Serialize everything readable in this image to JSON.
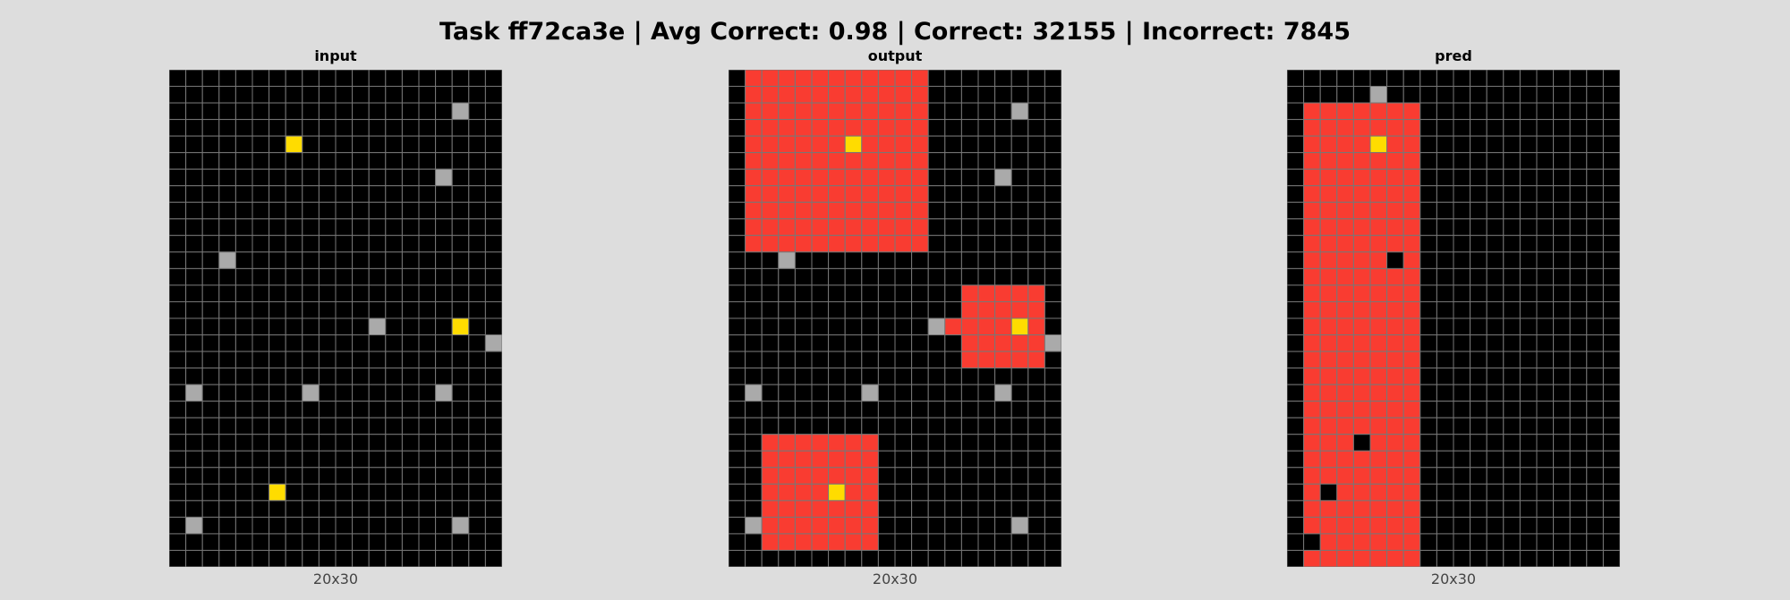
{
  "title": "Task ff72ca3e | Avg Correct: 0.98 | Correct: 32155 | Incorrect: 7845",
  "colors": {
    "0": "#000000",
    "2": "#f93c31",
    "4": "#ffdc00",
    "5": "#aaaaaa",
    "gridline": "#777777",
    "background": "#dddddd"
  },
  "panels": [
    {
      "label": "input",
      "size_label": "20x30",
      "rows": [
        "00000000000000000000",
        "00000000000000000000",
        "00000000000000000500",
        "00000000000000000000",
        "00000004000000000000",
        "00000000000000000000",
        "00000000000000005000",
        "00000000000000000000",
        "00000000000000000000",
        "00000000000000000000",
        "00000000000000000000",
        "00050000000000000000",
        "00000000000000000000",
        "00000000000000000000",
        "00000000000000000000",
        "00000000000050000400",
        "00000000000000000005",
        "00000000000000000000",
        "00000000000000000000",
        "05000000500000005000",
        "00000000000000000000",
        "00000000000000000000",
        "00000000000000000000",
        "00000000000000000000",
        "00000000000000000000",
        "00000040000000000000",
        "00000000000000000000",
        "05000000000000000500",
        "00000000000000000000",
        "00000000000000000000"
      ]
    },
    {
      "label": "output",
      "size_label": "20x30",
      "rows": [
        "02222222222200000000",
        "02222222222200000000",
        "02222222222200000500",
        "02222222222200000000",
        "02222224222200000000",
        "02222222222200000000",
        "02222222222200005000",
        "02222222222200000000",
        "02222222222200000000",
        "02222222222200000000",
        "02222222222200000000",
        "00050000000000000000",
        "00000000000000000000",
        "00000000000001222220",
        "00000000000001222220",
        "00000000000052222420",
        "00000000000001222225",
        "00000000000001222220",
        "00000000000000000000",
        "05000000500000005000",
        "00000000000000000000",
        "00000000000000000000",
        "00222222200000000000",
        "00222222200000000000",
        "00222222200000000000",
        "00222242200000000000",
        "00222222200000000000",
        "05222222200000000500",
        "00222222200000000000",
        "00000000000000000000"
      ]
    },
    {
      "label": "pred",
      "size_label": "20x30",
      "rows": [
        "00000000000000000000",
        "00000500000000000000",
        "02222222000000000000",
        "02222222000000000000",
        "02222422000000000000",
        "02222222000000000000",
        "02222222000000000000",
        "02222222000000000000",
        "02222222000000000000",
        "02222222000000000000",
        "02222222000000000000",
        "02222202000000000000",
        "02222222000000000000",
        "02222222000000000000",
        "02222222000000000000",
        "02222222000000000000",
        "02222222000000000000",
        "02222222000000000000",
        "02222222000000000000",
        "02222222000000000000",
        "02222222000000000000",
        "02222222000000000000",
        "02220222000000000000",
        "02222222000000000000",
        "02222222000000000000",
        "02022222000000000000",
        "02222222000000000000",
        "02222222000000000000",
        "00222222000000000000",
        "02222222000000000000"
      ]
    }
  ]
}
